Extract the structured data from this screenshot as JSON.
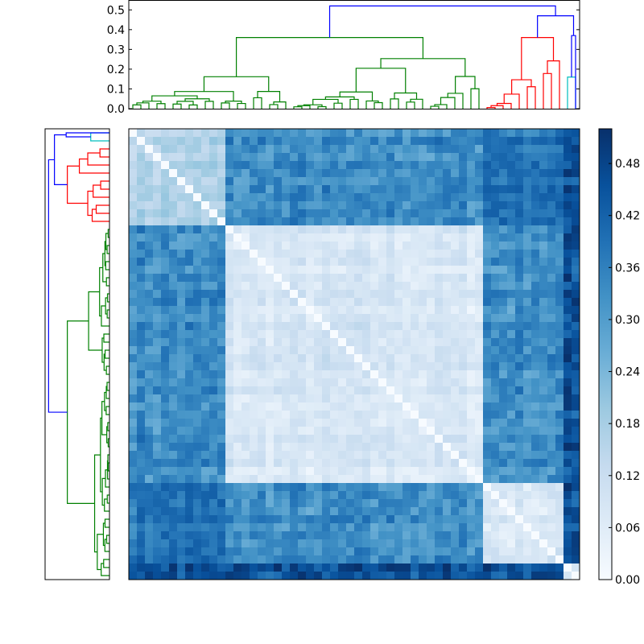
{
  "figure": {
    "background": "#ffffff"
  },
  "chart_data": [
    {
      "type": "dendrogram",
      "name": "top-dendrogram",
      "orientation": "top",
      "yticks": [
        "0.0",
        "0.1",
        "0.2",
        "0.3",
        "0.4",
        "0.5"
      ],
      "ylim": [
        0,
        0.55
      ],
      "cluster_colors": [
        "#008000",
        "#ff0000",
        "#00bfbf"
      ],
      "link_color": "#0000ff",
      "n_leaves": 56,
      "groups": [
        {
          "color": "#008000",
          "leaves": [
            0,
            43
          ],
          "height": 0.36
        },
        {
          "color": "#ff0000",
          "leaves": [
            44,
            53
          ],
          "height": 0.36
        },
        {
          "color": "#00bfbf",
          "leaves": [
            54,
            55
          ],
          "height": 0.16
        }
      ],
      "root_height": 0.52,
      "upper_links": [
        {
          "left_height": 0.36,
          "right_height": 0.47,
          "height": 0.52
        },
        {
          "left_height": 0.36,
          "right_height": 0.37,
          "height": 0.47
        },
        {
          "left_height": 0.16,
          "right_height": 0.0,
          "height": 0.37
        }
      ]
    },
    {
      "type": "dendrogram",
      "name": "left-dendrogram",
      "orientation": "left",
      "cluster_colors": [
        "#00bfbf",
        "#ff0000",
        "#008000"
      ],
      "link_color": "#0000ff"
    },
    {
      "type": "heatmap",
      "name": "distance-matrix",
      "colormap": "Blues",
      "vmin": 0.0,
      "vmax": 0.52,
      "size": 56,
      "block_boundaries": [
        12,
        44,
        54
      ],
      "within_block_value": 0.05,
      "cross_block_value": 0.33,
      "high_value": 0.5,
      "colorbar": {
        "ticks": [
          "0.00",
          "0.06",
          "0.12",
          "0.18",
          "0.24",
          "0.30",
          "0.36",
          "0.42",
          "0.48"
        ],
        "tick_values": [
          0.0,
          0.06,
          0.12,
          0.18,
          0.24,
          0.3,
          0.36,
          0.42,
          0.48
        ],
        "stops": [
          "#f7fbff",
          "#deebf7",
          "#c6dbef",
          "#9ecae1",
          "#6baed6",
          "#4292c6",
          "#2171b5",
          "#08519c",
          "#08306b"
        ]
      }
    }
  ]
}
